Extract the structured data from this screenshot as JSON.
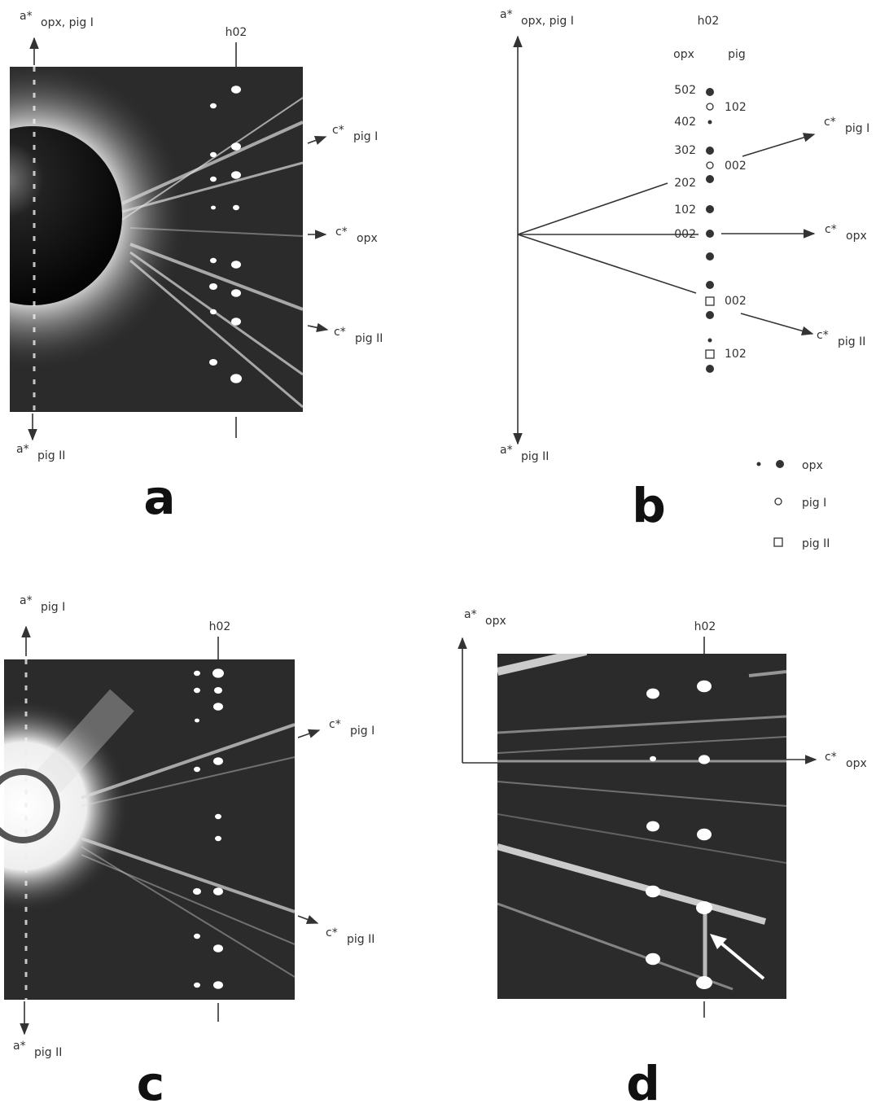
{
  "panels": [
    {
      "letter": "a",
      "h_label": "h02",
      "labels": [
        {
          "symbol": "a*",
          "sub": "opx, pig I"
        },
        {
          "symbol": "c*",
          "sub": "pig I"
        },
        {
          "symbol": "c*",
          "sub": "opx"
        },
        {
          "symbol": "c*",
          "sub": "pig II"
        },
        {
          "symbol": "a*",
          "sub": "pig II"
        }
      ]
    },
    {
      "letter": "b",
      "h_label": "h02",
      "column_headers": [
        "opx",
        "pig"
      ],
      "opx_indices": [
        "502",
        "402",
        "302",
        "202",
        "102",
        "002"
      ],
      "pig_indices": [
        "102",
        "002",
        "002",
        "102"
      ],
      "labels": [
        {
          "symbol": "a*",
          "sub": "opx, pig I"
        },
        {
          "symbol": "c*",
          "sub": "pig I"
        },
        {
          "symbol": "c*",
          "sub": "opx"
        },
        {
          "symbol": "c*",
          "sub": "pig II"
        },
        {
          "symbol": "a*",
          "sub": "pig II"
        }
      ],
      "legend": [
        "opx",
        "pig I",
        "pig II"
      ]
    },
    {
      "letter": "c",
      "h_label": "h02",
      "labels": [
        {
          "symbol": "a*",
          "sub": "pig I"
        },
        {
          "symbol": "c*",
          "sub": "pig I"
        },
        {
          "symbol": "c*",
          "sub": "pig II"
        },
        {
          "symbol": "a*",
          "sub": "pig II"
        }
      ]
    },
    {
      "letter": "d",
      "h_label": "h02",
      "labels": [
        {
          "symbol": "a*",
          "sub": "opx"
        },
        {
          "symbol": "c*",
          "sub": "opx"
        }
      ]
    }
  ]
}
